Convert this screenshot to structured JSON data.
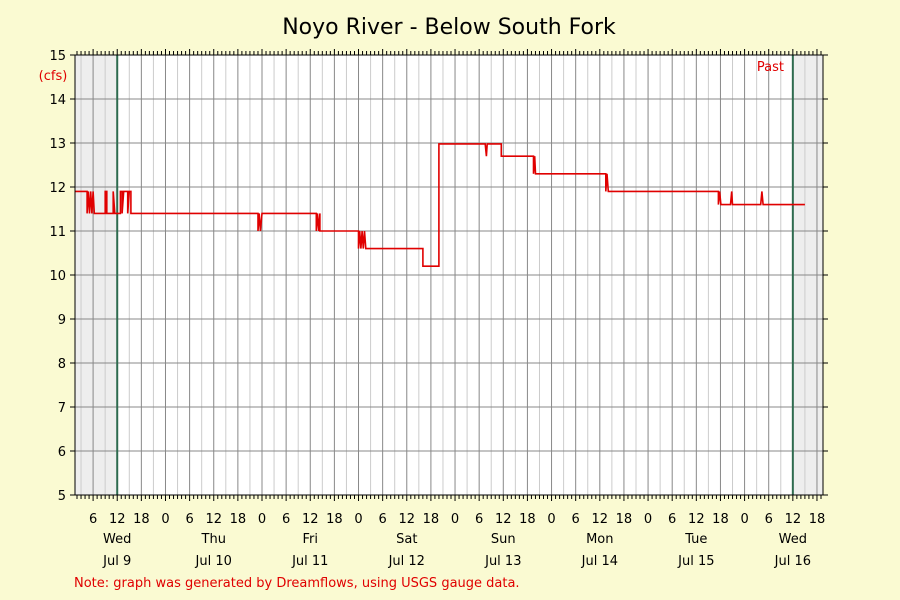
{
  "chart_data": {
    "type": "line",
    "title": "Noyo River - Below South Fork",
    "ylabel": "(cfs)",
    "ylim": [
      5,
      15
    ],
    "y_ticks": [
      "5",
      "6",
      "7",
      "8",
      "9",
      "10",
      "11",
      "12",
      "13",
      "14",
      "15"
    ],
    "x_unit": "hours since Jul 8 00:00",
    "xlim": [
      1.5,
      187.5
    ],
    "hour_ticks": [
      {
        "h": 6,
        "label": "6"
      },
      {
        "h": 12,
        "label": "12"
      },
      {
        "h": 18,
        "label": "18"
      },
      {
        "h": 24,
        "label": "0"
      },
      {
        "h": 30,
        "label": "6"
      },
      {
        "h": 36,
        "label": "12"
      },
      {
        "h": 42,
        "label": "18"
      },
      {
        "h": 48,
        "label": "0"
      },
      {
        "h": 54,
        "label": "6"
      },
      {
        "h": 60,
        "label": "12"
      },
      {
        "h": 66,
        "label": "18"
      },
      {
        "h": 72,
        "label": "0"
      },
      {
        "h": 78,
        "label": "6"
      },
      {
        "h": 84,
        "label": "12"
      },
      {
        "h": 90,
        "label": "18"
      },
      {
        "h": 96,
        "label": "0"
      },
      {
        "h": 102,
        "label": "6"
      },
      {
        "h": 108,
        "label": "12"
      },
      {
        "h": 114,
        "label": "18"
      },
      {
        "h": 120,
        "label": "0"
      },
      {
        "h": 126,
        "label": "6"
      },
      {
        "h": 132,
        "label": "12"
      },
      {
        "h": 138,
        "label": "18"
      },
      {
        "h": 144,
        "label": "0"
      },
      {
        "h": 150,
        "label": "6"
      },
      {
        "h": 156,
        "label": "12"
      },
      {
        "h": 162,
        "label": "18"
      },
      {
        "h": 168,
        "label": "0"
      },
      {
        "h": 174,
        "label": "6"
      },
      {
        "h": 180,
        "label": "12"
      },
      {
        "h": 186,
        "label": "18"
      }
    ],
    "day_labels": [
      {
        "h": 12,
        "day": "Wed",
        "date": "Jul 9"
      },
      {
        "h": 36,
        "day": "Thu",
        "date": "Jul 10"
      },
      {
        "h": 60,
        "day": "Fri",
        "date": "Jul 11"
      },
      {
        "h": 84,
        "day": "Sat",
        "date": "Jul 12"
      },
      {
        "h": 108,
        "day": "Sun",
        "date": "Jul 13"
      },
      {
        "h": 132,
        "day": "Mon",
        "date": "Jul 14"
      },
      {
        "h": 156,
        "day": "Tue",
        "date": "Jul 15"
      },
      {
        "h": 180,
        "day": "Wed",
        "date": "Jul 16"
      }
    ],
    "past_label": "Past",
    "markers": [
      12,
      180
    ],
    "series": [
      {
        "color": "#e00000",
        "points": [
          [
            1.5,
            11.9
          ],
          [
            4.5,
            11.9
          ],
          [
            4.5,
            11.4
          ],
          [
            4.8,
            11.9
          ],
          [
            5.1,
            11.4
          ],
          [
            5.4,
            11.9
          ],
          [
            5.7,
            11.4
          ],
          [
            6.0,
            11.9
          ],
          [
            6.3,
            11.4
          ],
          [
            9.0,
            11.4
          ],
          [
            9.0,
            11.9
          ],
          [
            9.4,
            11.9
          ],
          [
            9.4,
            11.4
          ],
          [
            11.0,
            11.4
          ],
          [
            11.0,
            11.9
          ],
          [
            11.4,
            11.4
          ],
          [
            12.8,
            11.4
          ],
          [
            12.8,
            11.9
          ],
          [
            13.2,
            11.9
          ],
          [
            13.2,
            11.4
          ],
          [
            13.6,
            11.9
          ],
          [
            14.6,
            11.9
          ],
          [
            14.6,
            11.4
          ],
          [
            15.0,
            11.9
          ],
          [
            15.4,
            11.9
          ],
          [
            15.4,
            11.4
          ],
          [
            47.0,
            11.4
          ],
          [
            47.0,
            11.0
          ],
          [
            47.3,
            11.4
          ],
          [
            47.6,
            11.0
          ],
          [
            48.0,
            11.4
          ],
          [
            61.5,
            11.4
          ],
          [
            61.5,
            11.0
          ],
          [
            61.8,
            11.4
          ],
          [
            62.1,
            11.0
          ],
          [
            62.4,
            11.4
          ],
          [
            62.4,
            11.0
          ],
          [
            72.0,
            11.0
          ],
          [
            72.0,
            10.6
          ],
          [
            72.3,
            11.0
          ],
          [
            72.6,
            10.6
          ],
          [
            72.9,
            11.0
          ],
          [
            73.2,
            10.6
          ],
          [
            73.5,
            11.0
          ],
          [
            73.8,
            10.6
          ],
          [
            88.0,
            10.6
          ],
          [
            88.0,
            10.2
          ],
          [
            92.0,
            10.2
          ],
          [
            92.0,
            12.98
          ],
          [
            103.5,
            12.98
          ],
          [
            103.8,
            12.7
          ],
          [
            104.0,
            12.98
          ],
          [
            107.5,
            12.98
          ],
          [
            107.5,
            12.7
          ],
          [
            115.5,
            12.7
          ],
          [
            115.5,
            12.3
          ],
          [
            115.8,
            12.7
          ],
          [
            116.0,
            12.3
          ],
          [
            133.5,
            12.3
          ],
          [
            133.5,
            11.9
          ],
          [
            133.8,
            12.3
          ],
          [
            134.1,
            11.9
          ],
          [
            161.5,
            11.9
          ],
          [
            161.5,
            11.6
          ],
          [
            161.8,
            11.9
          ],
          [
            162.1,
            11.6
          ],
          [
            164.5,
            11.6
          ],
          [
            164.8,
            11.9
          ],
          [
            165.0,
            11.6
          ],
          [
            172.0,
            11.6
          ],
          [
            172.3,
            11.9
          ],
          [
            172.6,
            11.6
          ],
          [
            183.0,
            11.6
          ]
        ]
      }
    ],
    "grid": true,
    "note": "Note: graph was generated by Dreamflows, using USGS gauge data."
  }
}
